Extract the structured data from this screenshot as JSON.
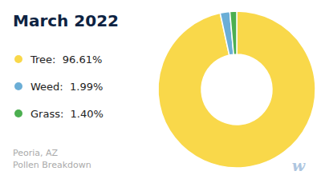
{
  "chart_data": {
    "type": "pie",
    "title": "March 2022",
    "subtitle": [
      "Peoria, AZ",
      "Pollen Breakdown"
    ],
    "categories": [
      "Tree:  96.61%",
      "Weed:  1.99%",
      "Grass:  1.40%"
    ],
    "values": [
      96.61,
      1.99,
      1.4
    ],
    "colors": [
      "#F9D84A",
      "#6BAED6",
      "#4CAF50"
    ],
    "legend": "left",
    "annotations": [
      "w"
    ]
  }
}
